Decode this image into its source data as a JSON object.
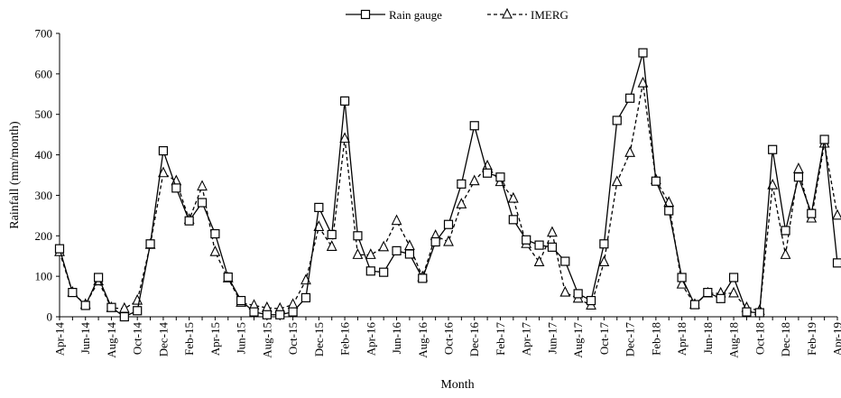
{
  "chart_data": {
    "type": "line",
    "xlabel": "Month",
    "ylabel": "Rainfall  (mm/month)",
    "ylim": [
      0,
      700
    ],
    "yticks": [
      0,
      100,
      200,
      300,
      400,
      500,
      600,
      700
    ],
    "grid": false,
    "legend_position": "top-center",
    "x": [
      "Apr-14",
      "May-14",
      "Jun-14",
      "Jul-14",
      "Aug-14",
      "Sep-14",
      "Oct-14",
      "Nov-14",
      "Dec-14",
      "Jan-15",
      "Feb-15",
      "Mar-15",
      "Apr-15",
      "May-15",
      "Jun-15",
      "Jul-15",
      "Aug-15",
      "Sep-15",
      "Oct-15",
      "Nov-15",
      "Dec-15",
      "Jan-16",
      "Feb-16",
      "Mar-16",
      "Apr-16",
      "May-16",
      "Jun-16",
      "Jul-16",
      "Aug-16",
      "Sep-16",
      "Oct-16",
      "Nov-16",
      "Dec-16",
      "Jan-17",
      "Feb-17",
      "Mar-17",
      "Apr-17",
      "May-17",
      "Jun-17",
      "Jul-17",
      "Aug-17",
      "Sep-17",
      "Oct-17",
      "Nov-17",
      "Dec-17",
      "Jan-18",
      "Feb-18",
      "Mar-18",
      "Apr-18",
      "May-18",
      "Jun-18",
      "Jul-18",
      "Aug-18",
      "Sep-18",
      "Oct-18",
      "Nov-18",
      "Dec-18",
      "Jan-19",
      "Feb-19",
      "Mar-19",
      "Apr-19"
    ],
    "tick_labels": [
      "Apr-14",
      "Jun-14",
      "Aug-14",
      "Oct-14",
      "Dec-14",
      "Feb-15",
      "Apr-15",
      "Jun-15",
      "Aug-15",
      "Oct-15",
      "Dec-15",
      "Feb-16",
      "Apr-16",
      "Jun-16",
      "Aug-16",
      "Oct-16",
      "Dec-16",
      "Feb-17",
      "Apr-17",
      "Jun-17",
      "Aug-17",
      "Oct-17",
      "Dec-17",
      "Feb-18",
      "Apr-18",
      "Jun-18",
      "Aug-18",
      "Oct-18",
      "Dec-18",
      "Feb-19",
      "Apr-19"
    ],
    "series": [
      {
        "name": "Rain gauge",
        "marker": "square",
        "line": "solid",
        "values": [
          168,
          60,
          28,
          97,
          23,
          0,
          15,
          180,
          410,
          318,
          237,
          282,
          205,
          98,
          40,
          12,
          5,
          5,
          12,
          47,
          270,
          203,
          533,
          200,
          113,
          110,
          163,
          155,
          95,
          185,
          228,
          328,
          472,
          355,
          345,
          240,
          190,
          177,
          172,
          137,
          57,
          40,
          180,
          485,
          540,
          652,
          335,
          262,
          97,
          30,
          60,
          45,
          97,
          12,
          10,
          413,
          213,
          345,
          255,
          438,
          133
        ]
      },
      {
        "name": "IMERG",
        "marker": "triangle",
        "line": "dashed",
        "values": [
          160,
          60,
          30,
          88,
          22,
          20,
          40,
          178,
          355,
          335,
          240,
          322,
          160,
          95,
          35,
          28,
          22,
          20,
          30,
          90,
          222,
          173,
          440,
          153,
          153,
          172,
          237,
          175,
          98,
          200,
          185,
          278,
          335,
          372,
          333,
          292,
          180,
          135,
          208,
          60,
          45,
          28,
          135,
          333,
          405,
          577,
          338,
          282,
          80,
          30,
          58,
          58,
          58,
          22,
          15,
          325,
          153,
          365,
          243,
          428,
          250
        ]
      }
    ]
  }
}
